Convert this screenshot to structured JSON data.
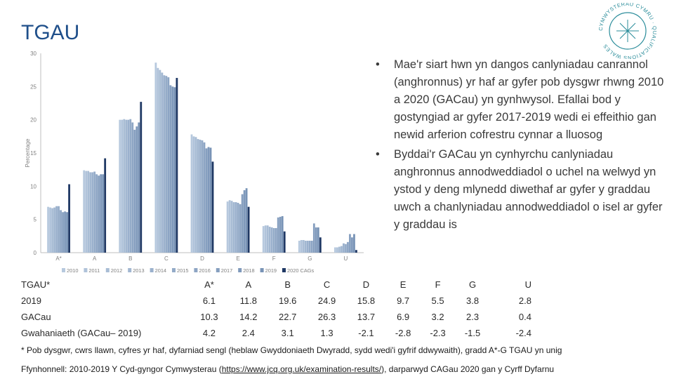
{
  "page": {
    "title": "TGAU"
  },
  "bullets": [
    "Mae'r siart hwn yn dangos canlyniadau canrannol (anghronnus) yr haf ar gyfer pob dysgwr rhwng 2010 a 2020 (GACau) yn gynhwysol. Efallai bod y gostyngiad ar gyfer 2017-2019 wedi ei effeithio gan newid arferion cofrestru cynnar a lluosog",
    "Byddai'r GACau yn cynhyrchu canlyniadau anghronnus annodweddiadol o uchel na welwyd yn ystod y deng mlynedd diwethaf ar gyfer y graddau uwch a chanlyniadau annodweddiadol o isel ar gyfer y graddau is"
  ],
  "logo": {
    "text": "CYMWYSTERAU CYMRU · QUALIFICATIONS WALES",
    "color": "#2a8c9a"
  },
  "table": {
    "corner": "TGAU*",
    "grades": [
      "A*",
      "A",
      "B",
      "C",
      "D",
      "E",
      "F",
      "G",
      "U"
    ],
    "rows": [
      {
        "label": "2019",
        "values": [
          "6.1",
          "11.8",
          "19.6",
          "24.9",
          "15.8",
          "9.7",
          "5.5",
          "3.8",
          "2.8"
        ]
      },
      {
        "label": "GACau",
        "values": [
          "10.3",
          "14.2",
          "22.7",
          "26.3",
          "13.7",
          "6.9",
          "3.2",
          "2.3",
          "0.4"
        ]
      },
      {
        "label": "Gwahaniaeth (GACau– 2019)",
        "values": [
          "4.2",
          "2.4",
          "3.1",
          "1.3",
          "-2.1",
          "-2.8",
          "-2.3",
          "-1.5",
          "-2.4"
        ]
      }
    ]
  },
  "footnote": "* Pob dysgwr, cwrs llawn, cyfres yr haf, dyfarniad sengl (heblaw Gwyddoniaeth Dwyradd, sydd wedi'i gyfrif ddwywaith), gradd A*-G TGAU yn unig",
  "source": {
    "prefix": "Ffynhonnell: 2010-2019 Y Cyd-gyngor Cymwysterau (",
    "link": "https://www.jcq.org.uk/examination-results/",
    "suffix": "), darparwyd CAGau 2020 gan y Cyrff Dyfarnu"
  },
  "chart_data": {
    "type": "bar",
    "ylabel": "Percentage",
    "ylim": [
      0,
      30
    ],
    "yticks": [
      0,
      5,
      10,
      15,
      20,
      25,
      30
    ],
    "grid": false,
    "legend_position": "bottom",
    "categories": [
      "A*",
      "A",
      "B",
      "C",
      "D",
      "E",
      "F",
      "G",
      "U"
    ],
    "series": [
      {
        "name": "2010",
        "color": "#b7c9de",
        "values": [
          6.9,
          12.4,
          20.0,
          28.6,
          17.8,
          7.7,
          4.0,
          1.8,
          0.8
        ]
      },
      {
        "name": "2011",
        "color": "#b0c3da",
        "values": [
          6.8,
          12.3,
          20.0,
          27.8,
          17.5,
          7.9,
          4.1,
          1.9,
          0.8
        ]
      },
      {
        "name": "2012",
        "color": "#a9bdd5",
        "values": [
          6.7,
          12.3,
          20.1,
          27.5,
          17.4,
          7.8,
          4.1,
          1.9,
          0.9
        ]
      },
      {
        "name": "2013",
        "color": "#a2b7d1",
        "values": [
          6.8,
          12.1,
          20.0,
          27.1,
          17.1,
          7.6,
          3.9,
          1.8,
          1.0
        ]
      },
      {
        "name": "2014",
        "color": "#9bb1cd",
        "values": [
          7.0,
          12.1,
          20.0,
          26.7,
          17.0,
          7.6,
          3.8,
          1.8,
          1.4
        ]
      },
      {
        "name": "2015",
        "color": "#94abc8",
        "values": [
          7.0,
          12.2,
          20.1,
          26.6,
          16.9,
          7.5,
          3.7,
          1.8,
          1.3
        ]
      },
      {
        "name": "2016",
        "color": "#8da5c4",
        "values": [
          6.4,
          11.8,
          19.6,
          26.4,
          16.6,
          7.3,
          3.7,
          1.8,
          1.6
        ]
      },
      {
        "name": "2017",
        "color": "#869fbf",
        "values": [
          6.1,
          11.6,
          18.5,
          25.2,
          15.7,
          8.8,
          5.3,
          4.4,
          2.8
        ]
      },
      {
        "name": "2018",
        "color": "#7f99bb",
        "values": [
          6.2,
          11.8,
          19.0,
          25.0,
          15.9,
          9.4,
          5.4,
          3.8,
          2.3
        ]
      },
      {
        "name": "2019",
        "color": "#7893b6",
        "values": [
          6.1,
          11.8,
          19.6,
          24.9,
          15.8,
          9.7,
          5.5,
          3.8,
          2.8
        ]
      },
      {
        "name": "2020 CAGs",
        "color": "#1f3864",
        "values": [
          10.3,
          14.2,
          22.7,
          26.3,
          13.7,
          6.9,
          3.2,
          2.3,
          0.4
        ]
      }
    ]
  }
}
